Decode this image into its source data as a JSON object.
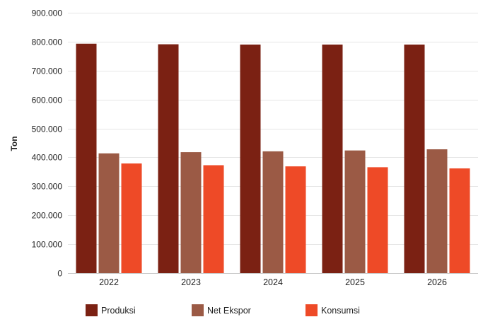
{
  "chart_data": {
    "type": "bar",
    "categories": [
      "2022",
      "2023",
      "2024",
      "2025",
      "2026"
    ],
    "series": [
      {
        "name": "Produksi",
        "color": "#7b2113",
        "values": [
          793000,
          791000,
          790000,
          790000,
          790000
        ]
      },
      {
        "name": "Net Ekspor",
        "color": "#9b5a45",
        "values": [
          414000,
          418000,
          421000,
          424000,
          428000
        ]
      },
      {
        "name": "Konsumsi",
        "color": "#ee4a27",
        "values": [
          379000,
          373000,
          369000,
          366000,
          362000
        ]
      }
    ],
    "ylabel": "Ton",
    "ylim": [
      0,
      900000
    ],
    "yticks": [
      0,
      100000,
      200000,
      300000,
      400000,
      500000,
      600000,
      700000,
      800000,
      900000
    ],
    "ytick_labels": [
      "0",
      "100.000",
      "200.000",
      "300.000",
      "400.000",
      "500.000",
      "600.000",
      "700.000",
      "800.000",
      "900.000"
    ],
    "grid": true,
    "legend_position": "bottom"
  }
}
